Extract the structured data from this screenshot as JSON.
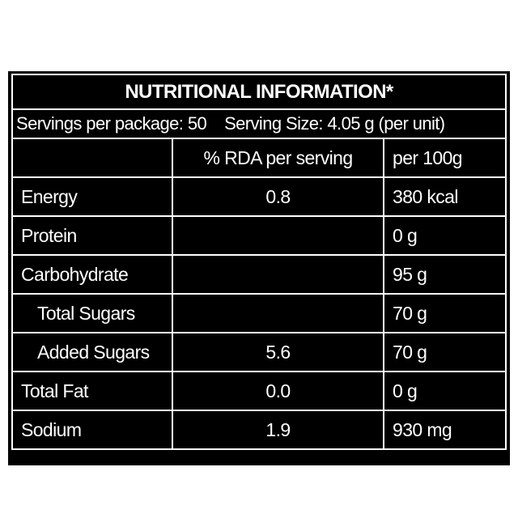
{
  "title": "NUTRITIONAL INFORMATION*",
  "servings": {
    "per_package": "Servings per package: 50",
    "serving_size": "Serving Size: 4.05 g (per unit)"
  },
  "table": {
    "header": [
      null,
      "% RDA per serving",
      "per 100g"
    ],
    "rows": [
      [
        "Energy",
        "0.8",
        "380 kcal"
      ],
      [
        "Protein",
        null,
        "0 g"
      ],
      [
        "Carbohydrate",
        null,
        "95 g"
      ],
      [
        "Total Sugars",
        null,
        "70 g"
      ],
      [
        "Added Sugars",
        "5.6",
        "70 g"
      ],
      [
        "Total Fat",
        "0.0",
        "0 g"
      ],
      [
        "Sodium",
        "1.9",
        "930 mg"
      ]
    ],
    "indented_rows": [
      3,
      4
    ]
  }
}
